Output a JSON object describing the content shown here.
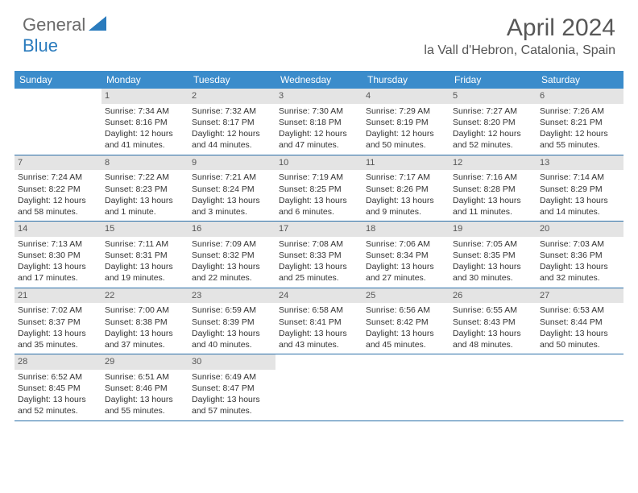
{
  "logo": {
    "part1": "General",
    "part2": "Blue"
  },
  "title": "April 2024",
  "location": "la Vall d'Hebron, Catalonia, Spain",
  "weekdays": [
    "Sunday",
    "Monday",
    "Tuesday",
    "Wednesday",
    "Thursday",
    "Friday",
    "Saturday"
  ],
  "header_bg": "#3b8ccb",
  "row_border": "#2a6fa8",
  "daynum_bg": "#e4e4e4",
  "weeks": [
    [
      {
        "n": "",
        "sr": "",
        "ss": "",
        "d1": "",
        "d2": ""
      },
      {
        "n": "1",
        "sr": "Sunrise: 7:34 AM",
        "ss": "Sunset: 8:16 PM",
        "d1": "Daylight: 12 hours",
        "d2": "and 41 minutes."
      },
      {
        "n": "2",
        "sr": "Sunrise: 7:32 AM",
        "ss": "Sunset: 8:17 PM",
        "d1": "Daylight: 12 hours",
        "d2": "and 44 minutes."
      },
      {
        "n": "3",
        "sr": "Sunrise: 7:30 AM",
        "ss": "Sunset: 8:18 PM",
        "d1": "Daylight: 12 hours",
        "d2": "and 47 minutes."
      },
      {
        "n": "4",
        "sr": "Sunrise: 7:29 AM",
        "ss": "Sunset: 8:19 PM",
        "d1": "Daylight: 12 hours",
        "d2": "and 50 minutes."
      },
      {
        "n": "5",
        "sr": "Sunrise: 7:27 AM",
        "ss": "Sunset: 8:20 PM",
        "d1": "Daylight: 12 hours",
        "d2": "and 52 minutes."
      },
      {
        "n": "6",
        "sr": "Sunrise: 7:26 AM",
        "ss": "Sunset: 8:21 PM",
        "d1": "Daylight: 12 hours",
        "d2": "and 55 minutes."
      }
    ],
    [
      {
        "n": "7",
        "sr": "Sunrise: 7:24 AM",
        "ss": "Sunset: 8:22 PM",
        "d1": "Daylight: 12 hours",
        "d2": "and 58 minutes."
      },
      {
        "n": "8",
        "sr": "Sunrise: 7:22 AM",
        "ss": "Sunset: 8:23 PM",
        "d1": "Daylight: 13 hours",
        "d2": "and 1 minute."
      },
      {
        "n": "9",
        "sr": "Sunrise: 7:21 AM",
        "ss": "Sunset: 8:24 PM",
        "d1": "Daylight: 13 hours",
        "d2": "and 3 minutes."
      },
      {
        "n": "10",
        "sr": "Sunrise: 7:19 AM",
        "ss": "Sunset: 8:25 PM",
        "d1": "Daylight: 13 hours",
        "d2": "and 6 minutes."
      },
      {
        "n": "11",
        "sr": "Sunrise: 7:17 AM",
        "ss": "Sunset: 8:26 PM",
        "d1": "Daylight: 13 hours",
        "d2": "and 9 minutes."
      },
      {
        "n": "12",
        "sr": "Sunrise: 7:16 AM",
        "ss": "Sunset: 8:28 PM",
        "d1": "Daylight: 13 hours",
        "d2": "and 11 minutes."
      },
      {
        "n": "13",
        "sr": "Sunrise: 7:14 AM",
        "ss": "Sunset: 8:29 PM",
        "d1": "Daylight: 13 hours",
        "d2": "and 14 minutes."
      }
    ],
    [
      {
        "n": "14",
        "sr": "Sunrise: 7:13 AM",
        "ss": "Sunset: 8:30 PM",
        "d1": "Daylight: 13 hours",
        "d2": "and 17 minutes."
      },
      {
        "n": "15",
        "sr": "Sunrise: 7:11 AM",
        "ss": "Sunset: 8:31 PM",
        "d1": "Daylight: 13 hours",
        "d2": "and 19 minutes."
      },
      {
        "n": "16",
        "sr": "Sunrise: 7:09 AM",
        "ss": "Sunset: 8:32 PM",
        "d1": "Daylight: 13 hours",
        "d2": "and 22 minutes."
      },
      {
        "n": "17",
        "sr": "Sunrise: 7:08 AM",
        "ss": "Sunset: 8:33 PM",
        "d1": "Daylight: 13 hours",
        "d2": "and 25 minutes."
      },
      {
        "n": "18",
        "sr": "Sunrise: 7:06 AM",
        "ss": "Sunset: 8:34 PM",
        "d1": "Daylight: 13 hours",
        "d2": "and 27 minutes."
      },
      {
        "n": "19",
        "sr": "Sunrise: 7:05 AM",
        "ss": "Sunset: 8:35 PM",
        "d1": "Daylight: 13 hours",
        "d2": "and 30 minutes."
      },
      {
        "n": "20",
        "sr": "Sunrise: 7:03 AM",
        "ss": "Sunset: 8:36 PM",
        "d1": "Daylight: 13 hours",
        "d2": "and 32 minutes."
      }
    ],
    [
      {
        "n": "21",
        "sr": "Sunrise: 7:02 AM",
        "ss": "Sunset: 8:37 PM",
        "d1": "Daylight: 13 hours",
        "d2": "and 35 minutes."
      },
      {
        "n": "22",
        "sr": "Sunrise: 7:00 AM",
        "ss": "Sunset: 8:38 PM",
        "d1": "Daylight: 13 hours",
        "d2": "and 37 minutes."
      },
      {
        "n": "23",
        "sr": "Sunrise: 6:59 AM",
        "ss": "Sunset: 8:39 PM",
        "d1": "Daylight: 13 hours",
        "d2": "and 40 minutes."
      },
      {
        "n": "24",
        "sr": "Sunrise: 6:58 AM",
        "ss": "Sunset: 8:41 PM",
        "d1": "Daylight: 13 hours",
        "d2": "and 43 minutes."
      },
      {
        "n": "25",
        "sr": "Sunrise: 6:56 AM",
        "ss": "Sunset: 8:42 PM",
        "d1": "Daylight: 13 hours",
        "d2": "and 45 minutes."
      },
      {
        "n": "26",
        "sr": "Sunrise: 6:55 AM",
        "ss": "Sunset: 8:43 PM",
        "d1": "Daylight: 13 hours",
        "d2": "and 48 minutes."
      },
      {
        "n": "27",
        "sr": "Sunrise: 6:53 AM",
        "ss": "Sunset: 8:44 PM",
        "d1": "Daylight: 13 hours",
        "d2": "and 50 minutes."
      }
    ],
    [
      {
        "n": "28",
        "sr": "Sunrise: 6:52 AM",
        "ss": "Sunset: 8:45 PM",
        "d1": "Daylight: 13 hours",
        "d2": "and 52 minutes."
      },
      {
        "n": "29",
        "sr": "Sunrise: 6:51 AM",
        "ss": "Sunset: 8:46 PM",
        "d1": "Daylight: 13 hours",
        "d2": "and 55 minutes."
      },
      {
        "n": "30",
        "sr": "Sunrise: 6:49 AM",
        "ss": "Sunset: 8:47 PM",
        "d1": "Daylight: 13 hours",
        "d2": "and 57 minutes."
      },
      {
        "n": "",
        "sr": "",
        "ss": "",
        "d1": "",
        "d2": ""
      },
      {
        "n": "",
        "sr": "",
        "ss": "",
        "d1": "",
        "d2": ""
      },
      {
        "n": "",
        "sr": "",
        "ss": "",
        "d1": "",
        "d2": ""
      },
      {
        "n": "",
        "sr": "",
        "ss": "",
        "d1": "",
        "d2": ""
      }
    ]
  ]
}
